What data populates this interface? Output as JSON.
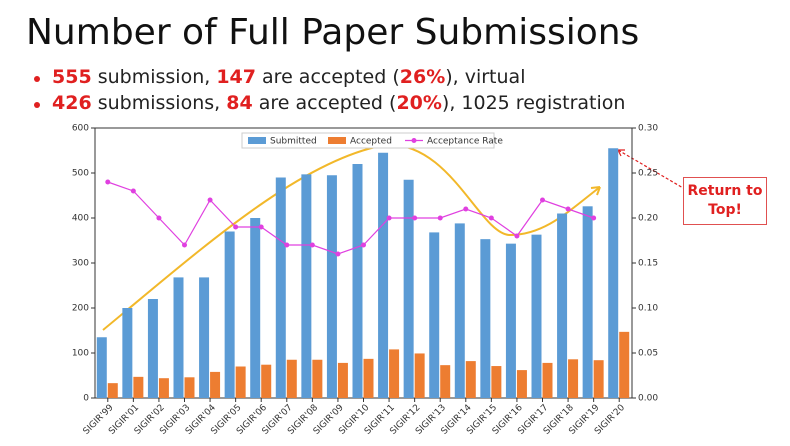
{
  "header": {
    "title": "Number of Full Paper Submissions"
  },
  "bullets": [
    {
      "parts": [
        {
          "text": "555",
          "highlight": true
        },
        {
          "text": " submission, "
        },
        {
          "text": "147",
          "highlight": true
        },
        {
          "text": " are accepted ("
        },
        {
          "text": "26%",
          "highlight": true
        },
        {
          "text": "), virtual"
        }
      ]
    },
    {
      "parts": [
        {
          "text": "426",
          "highlight": true
        },
        {
          "text": " submissions, "
        },
        {
          "text": "84",
          "highlight": true
        },
        {
          "text": " are accepted ("
        },
        {
          "text": "20%",
          "highlight": true
        },
        {
          "text": "), 1025 registration"
        }
      ]
    }
  ],
  "annotation": "Return to Top!",
  "chart_data": {
    "type": "bar",
    "categories": [
      "SIGIR'99",
      "SIGIR'01",
      "SIGIR'02",
      "SIGIR'03",
      "SIGIR'04",
      "SIGIR'05",
      "SIGIR'06",
      "SIGIR'07",
      "SIGIR'08",
      "SIGIR'09",
      "SIGIR'10",
      "SIGIR'11",
      "SIGIR'12",
      "SIGIR'13",
      "SIGIR'14",
      "SIGIR'15",
      "SIGIR'16",
      "SIGIR'17",
      "SIGIR'18",
      "SIGIR'19",
      "SIGIR'20"
    ],
    "series": [
      {
        "name": "Submitted",
        "color": "#5b9bd5",
        "values": [
          135,
          200,
          220,
          268,
          268,
          370,
          400,
          490,
          497,
          495,
          520,
          545,
          485,
          368,
          388,
          353,
          343,
          363,
          410,
          426,
          555
        ]
      },
      {
        "name": "Accepted",
        "color": "#ed7d31",
        "values": [
          33,
          47,
          44,
          46,
          58,
          70,
          74,
          85,
          85,
          78,
          87,
          108,
          99,
          73,
          82,
          71,
          62,
          78,
          86,
          84,
          147
        ]
      },
      {
        "name": "Acceptance Rate",
        "color": "#e040e0",
        "type": "line",
        "axis": "y2",
        "values": [
          0.24,
          0.23,
          0.2,
          0.17,
          0.22,
          0.19,
          0.19,
          0.17,
          0.17,
          0.16,
          0.17,
          0.2,
          0.2,
          0.2,
          0.21,
          0.2,
          0.18,
          0.22,
          0.21,
          0.2,
          null
        ]
      }
    ],
    "ylim": [
      0,
      600
    ],
    "yticks": [
      0,
      100,
      200,
      300,
      400,
      500,
      600
    ],
    "y2lim": [
      0,
      0.3
    ],
    "y2ticks": [
      {
        "value": 0,
        "label": "0.00"
      },
      {
        "value": 0.05,
        "label": "0.05"
      },
      {
        "value": 0.1,
        "label": "0.10"
      },
      {
        "value": 0.15,
        "label": "0.15"
      },
      {
        "value": 0.2,
        "label": "0.20"
      },
      {
        "value": 0.25,
        "label": "0.25"
      },
      {
        "value": 0.3,
        "label": "0.30"
      }
    ],
    "legend": "top"
  }
}
